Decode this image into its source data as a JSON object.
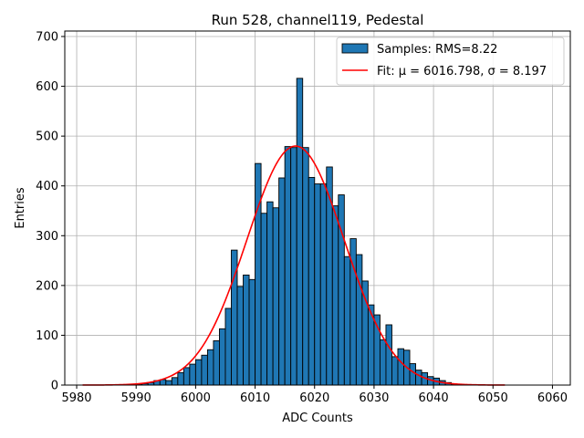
{
  "chart_data": {
    "type": "bar",
    "title": "Run 528, channel119, Pedestal",
    "xlabel": "ADC Counts",
    "ylabel": "Entries",
    "xlim": [
      5978,
      6063
    ],
    "ylim": [
      0,
      711
    ],
    "xticks": [
      5980,
      5990,
      6000,
      6010,
      6020,
      6030,
      6040,
      6050,
      6060
    ],
    "yticks": [
      0,
      100,
      200,
      300,
      400,
      500,
      600,
      700
    ],
    "grid": true,
    "legend_position": "top-right",
    "bin_width": 1,
    "series": [
      {
        "name": "Samples: RMS=8.22",
        "kind": "histogram",
        "color": "#1f77b4",
        "bins": [
          5986,
          5987,
          5988,
          5989,
          5990,
          5991,
          5992,
          5993,
          5994,
          5995,
          5996,
          5997,
          5998,
          5999,
          6000,
          6001,
          6002,
          6003,
          6004,
          6005,
          6006,
          6007,
          6008,
          6009,
          6010,
          6011,
          6012,
          6013,
          6014,
          6015,
          6016,
          6017,
          6018,
          6019,
          6020,
          6021,
          6022,
          6023,
          6024,
          6025,
          6026,
          6027,
          6028,
          6029,
          6030,
          6031,
          6032,
          6033,
          6034,
          6035,
          6036,
          6037,
          6038,
          6039,
          6040,
          6041,
          6042,
          6043,
          6044
        ],
        "values": [
          1,
          1,
          1,
          1,
          2,
          3,
          5,
          9,
          11,
          9,
          15,
          25,
          35,
          42,
          51,
          60,
          71,
          89,
          113,
          154,
          271,
          198,
          221,
          212,
          445,
          345,
          368,
          356,
          416,
          479,
          477,
          616,
          477,
          417,
          404,
          404,
          438,
          360,
          382,
          258,
          294,
          262,
          209,
          161,
          141,
          91,
          121,
          57,
          73,
          70,
          43,
          30,
          25,
          17,
          14,
          9,
          5,
          2,
          1
        ]
      },
      {
        "name": "Fit: μ = 6016.798, σ = 8.197",
        "kind": "gaussian",
        "color": "#ff0000",
        "mu": 6016.798,
        "sigma": 8.197,
        "amplitude": 480,
        "x_range": [
          5981,
          6052
        ]
      }
    ]
  }
}
